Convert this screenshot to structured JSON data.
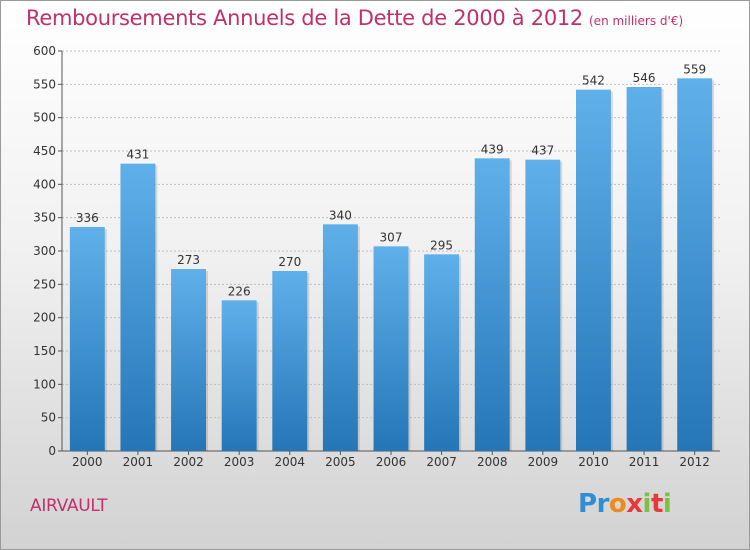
{
  "header": {
    "title": "Remboursements Annuels de la Dette de 2000 à 2012",
    "subtitle": "(en milliers d'€)"
  },
  "footer": {
    "city": "AIRVAULT",
    "logo_letters": [
      "P",
      "r",
      "o",
      "x",
      "i",
      "t",
      "i"
    ]
  },
  "colors": {
    "title": "#c0306a",
    "bar_top": "#5fb0ea",
    "bar_bottom": "#2476b7",
    "grid": "#bfbfbf"
  },
  "chart_data": {
    "type": "bar",
    "title": "Remboursements Annuels de la Dette de 2000 à 2012",
    "subtitle": "(en milliers d'€)",
    "xlabel": "",
    "ylabel": "",
    "categories": [
      "2000",
      "2001",
      "2002",
      "2003",
      "2004",
      "2005",
      "2006",
      "2007",
      "2008",
      "2009",
      "2010",
      "2011",
      "2012"
    ],
    "values": [
      336,
      431,
      273,
      226,
      270,
      340,
      307,
      295,
      439,
      437,
      542,
      546,
      559
    ],
    "ylim": [
      0,
      600
    ],
    "yticks": [
      0,
      50,
      100,
      150,
      200,
      250,
      300,
      350,
      400,
      450,
      500,
      550,
      600
    ],
    "grid": true,
    "data_labels": true
  }
}
